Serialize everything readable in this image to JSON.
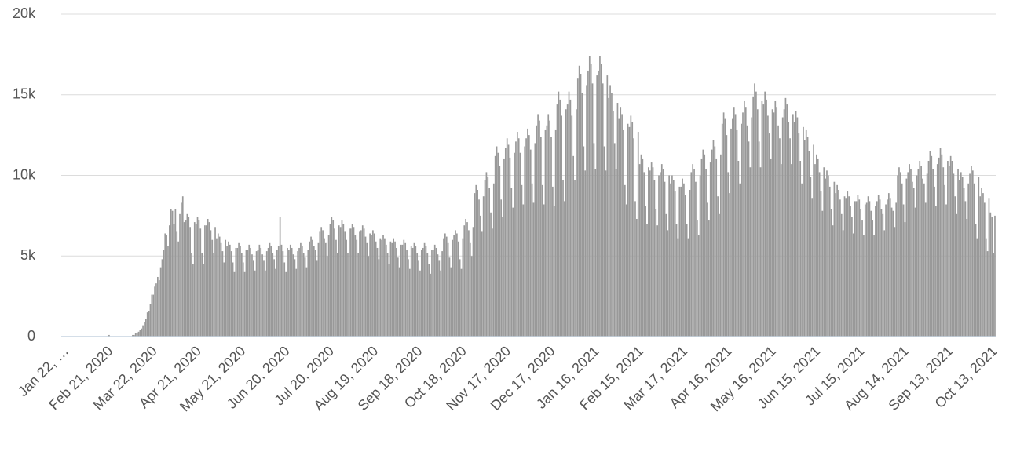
{
  "chart_data": {
    "type": "bar",
    "categories": [
      "Jan 22, …",
      null,
      null,
      null,
      null,
      null,
      null,
      null,
      null,
      null,
      null,
      null,
      null,
      null,
      null,
      null,
      null,
      null,
      null,
      null,
      null,
      null,
      null,
      null,
      null,
      null,
      null,
      null,
      null,
      null,
      "Feb 21, 2020",
      null,
      null,
      null,
      null,
      null,
      null,
      null,
      null,
      null,
      null,
      null,
      null,
      null,
      null,
      null,
      null,
      null,
      null,
      null,
      null,
      null,
      null,
      null,
      null,
      null,
      null,
      null,
      null,
      null,
      "Mar 22, 2020",
      null,
      null,
      null,
      null,
      null,
      null,
      null,
      null,
      null,
      null,
      null,
      null,
      null,
      null,
      null,
      null,
      null,
      null,
      null,
      null,
      null,
      null,
      null,
      null,
      null,
      null,
      null,
      null,
      null,
      "Apr 21, 2020",
      null,
      null,
      null,
      null,
      null,
      null,
      null,
      null,
      null,
      null,
      null,
      null,
      null,
      null,
      null,
      null,
      null,
      null,
      null,
      null,
      null,
      null,
      null,
      null,
      null,
      null,
      null,
      null,
      null,
      "May 21, 2020",
      null,
      null,
      null,
      null,
      null,
      null,
      null,
      null,
      null,
      null,
      null,
      null,
      null,
      null,
      null,
      null,
      null,
      null,
      null,
      null,
      null,
      null,
      null,
      null,
      null,
      null,
      null,
      null,
      null,
      "Jun 20, 2020",
      null,
      null,
      null,
      null,
      null,
      null,
      null,
      null,
      null,
      null,
      null,
      null,
      null,
      null,
      null,
      null,
      null,
      null,
      null,
      null,
      null,
      null,
      null,
      null,
      null,
      null,
      null,
      null,
      null,
      "Jul 20, 2020",
      null,
      null,
      null,
      null,
      null,
      null,
      null,
      null,
      null,
      null,
      null,
      null,
      null,
      null,
      null,
      null,
      null,
      null,
      null,
      null,
      null,
      null,
      null,
      null,
      null,
      null,
      null,
      null,
      null,
      "Aug 19, 2020",
      null,
      null,
      null,
      null,
      null,
      null,
      null,
      null,
      null,
      null,
      null,
      null,
      null,
      null,
      null,
      null,
      null,
      null,
      null,
      null,
      null,
      null,
      null,
      null,
      null,
      null,
      null,
      null,
      null,
      "Sep 18, 2020",
      null,
      null,
      null,
      null,
      null,
      null,
      null,
      null,
      null,
      null,
      null,
      null,
      null,
      null,
      null,
      null,
      null,
      null,
      null,
      null,
      null,
      null,
      null,
      null,
      null,
      null,
      null,
      null,
      null,
      "Oct 18, 2020",
      null,
      null,
      null,
      null,
      null,
      null,
      null,
      null,
      null,
      null,
      null,
      null,
      null,
      null,
      null,
      null,
      null,
      null,
      null,
      null,
      null,
      null,
      null,
      null,
      null,
      null,
      null,
      null,
      null,
      "Nov 17, 2020",
      null,
      null,
      null,
      null,
      null,
      null,
      null,
      null,
      null,
      null,
      null,
      null,
      null,
      null,
      null,
      null,
      null,
      null,
      null,
      null,
      null,
      null,
      null,
      null,
      null,
      null,
      null,
      null,
      null,
      "Dec 17, 2020",
      null,
      null,
      null,
      null,
      null,
      null,
      null,
      null,
      null,
      null,
      null,
      null,
      null,
      null,
      null,
      null,
      null,
      null,
      null,
      null,
      null,
      null,
      null,
      null,
      null,
      null,
      null,
      null,
      null,
      "Jan 16, 2021",
      null,
      null,
      null,
      null,
      null,
      null,
      null,
      null,
      null,
      null,
      null,
      null,
      null,
      null,
      null,
      null,
      null,
      null,
      null,
      null,
      null,
      null,
      null,
      null,
      null,
      null,
      null,
      null,
      null,
      "Feb 15, 2021",
      null,
      null,
      null,
      null,
      null,
      null,
      null,
      null,
      null,
      null,
      null,
      null,
      null,
      null,
      null,
      null,
      null,
      null,
      null,
      null,
      null,
      null,
      null,
      null,
      null,
      null,
      null,
      null,
      null,
      "Mar 17, 2021",
      null,
      null,
      null,
      null,
      null,
      null,
      null,
      null,
      null,
      null,
      null,
      null,
      null,
      null,
      null,
      null,
      null,
      null,
      null,
      null,
      null,
      null,
      null,
      null,
      null,
      null,
      null,
      null,
      null,
      "Apr 16, 2021",
      null,
      null,
      null,
      null,
      null,
      null,
      null,
      null,
      null,
      null,
      null,
      null,
      null,
      null,
      null,
      null,
      null,
      null,
      null,
      null,
      null,
      null,
      null,
      null,
      null,
      null,
      null,
      null,
      null,
      "May 16, 2021",
      null,
      null,
      null,
      null,
      null,
      null,
      null,
      null,
      null,
      null,
      null,
      null,
      null,
      null,
      null,
      null,
      null,
      null,
      null,
      null,
      null,
      null,
      null,
      null,
      null,
      null,
      null,
      null,
      null,
      "Jun 15, 2021",
      null,
      null,
      null,
      null,
      null,
      null,
      null,
      null,
      null,
      null,
      null,
      null,
      null,
      null,
      null,
      null,
      null,
      null,
      null,
      null,
      null,
      null,
      null,
      null,
      null,
      null,
      null,
      null,
      null,
      "Jul 15, 2021",
      null,
      null,
      null,
      null,
      null,
      null,
      null,
      null,
      null,
      null,
      null,
      null,
      null,
      null,
      null,
      null,
      null,
      null,
      null,
      null,
      null,
      null,
      null,
      null,
      null,
      null,
      null,
      null,
      null,
      "Aug 14, 2021",
      null,
      null,
      null,
      null,
      null,
      null,
      null,
      null,
      null,
      null,
      null,
      null,
      null,
      null,
      null,
      null,
      null,
      null,
      null,
      null,
      null,
      null,
      null,
      null,
      null,
      null,
      null,
      null,
      null,
      "Sep 13, 2021",
      null,
      null,
      null,
      null,
      null,
      null,
      null,
      null,
      null,
      null,
      null,
      null,
      null,
      null,
      null,
      null,
      null,
      null,
      null,
      null,
      null,
      null,
      null,
      null,
      null,
      null,
      null,
      null,
      null,
      "Oct 13, 2021",
      null,
      null,
      null
    ],
    "values": [
      0,
      0,
      0,
      0,
      0,
      0,
      0,
      0,
      0,
      0,
      0,
      0,
      0,
      0,
      0,
      0,
      0,
      0,
      0,
      0,
      0,
      0,
      0,
      0,
      0,
      0,
      0,
      0,
      0,
      0,
      0,
      0,
      100,
      0,
      0,
      0,
      0,
      0,
      0,
      0,
      0,
      0,
      0,
      0,
      0,
      0,
      0,
      0,
      100,
      100,
      200,
      200,
      300,
      400,
      500,
      700,
      900,
      1100,
      1500,
      1600,
      2000,
      2600,
      2600,
      3100,
      3300,
      3700,
      3500,
      4300,
      4800,
      5400,
      6400,
      6300,
      5600,
      6900,
      7900,
      7800,
      7000,
      7900,
      6500,
      5900,
      7600,
      8300,
      8700,
      7100,
      7200,
      7600,
      7400,
      6800,
      5200,
      4500,
      7100,
      7000,
      7400,
      7200,
      6700,
      5200,
      4500,
      6900,
      6900,
      7300,
      7100,
      6600,
      6000,
      5200,
      6800,
      6100,
      6400,
      6200,
      5800,
      5300,
      4600,
      6000,
      5600,
      5900,
      5700,
      5300,
      4600,
      4000,
      5500,
      5500,
      5800,
      5600,
      5200,
      4600,
      4000,
      5400,
      5400,
      5700,
      5500,
      5100,
      4700,
      4100,
      5300,
      5400,
      5700,
      5500,
      5100,
      4700,
      4100,
      5300,
      5500,
      5800,
      5600,
      5200,
      4800,
      4200,
      5400,
      5600,
      7400,
      5700,
      5300,
      4600,
      4000,
      5500,
      5400,
      5700,
      5500,
      5100,
      4800,
      4200,
      5300,
      5500,
      5800,
      5600,
      5200,
      4900,
      4300,
      5400,
      5900,
      6200,
      6000,
      5600,
      5400,
      4700,
      5800,
      6500,
      6800,
      6600,
      6100,
      5800,
      5000,
      6300,
      7000,
      7400,
      7200,
      6700,
      6000,
      5200,
      6900,
      6800,
      7200,
      7000,
      6500,
      6000,
      5200,
      6700,
      6700,
      7000,
      6800,
      6300,
      6000,
      5200,
      6500,
      6600,
      6900,
      6700,
      6200,
      5800,
      5000,
      6400,
      6300,
      6600,
      6400,
      5900,
      5500,
      4800,
      6100,
      6000,
      6300,
      6100,
      5700,
      5200,
      4500,
      5900,
      5800,
      6100,
      5900,
      5500,
      4900,
      4300,
      5700,
      5700,
      6000,
      5800,
      5400,
      4800,
      4200,
      5600,
      5500,
      5800,
      5600,
      5200,
      4700,
      4100,
      5400,
      5500,
      5800,
      5600,
      5200,
      4500,
      3900,
      5400,
      5400,
      5700,
      5500,
      5100,
      4700,
      4100,
      5300,
      6100,
      6400,
      6200,
      5800,
      4900,
      4300,
      6000,
      6300,
      6600,
      6400,
      5900,
      4800,
      4200,
      6100,
      6900,
      7300,
      7100,
      6600,
      5800,
      5000,
      6800,
      8900,
      9400,
      9100,
      8500,
      7500,
      6500,
      8700,
      9700,
      10200,
      9900,
      9200,
      7700,
      6700,
      9500,
      11200,
      11800,
      11400,
      10600,
      8500,
      7400,
      11000,
      11700,
      12300,
      11900,
      11100,
      9200,
      8000,
      11400,
      12100,
      12700,
      12300,
      11400,
      9400,
      8200,
      11800,
      12300,
      12900,
      12500,
      11600,
      9500,
      8300,
      12000,
      13100,
      13800,
      13400,
      12400,
      9400,
      8200,
      12800,
      13100,
      13800,
      13400,
      12400,
      9300,
      8100,
      12800,
      14400,
      15200,
      14700,
      13700,
      9700,
      8400,
      14100,
      14400,
      15200,
      14700,
      13700,
      11200,
      9700,
      14100,
      16000,
      16800,
      16300,
      15100,
      11800,
      10300,
      15600,
      16500,
      17400,
      16900,
      15700,
      12000,
      10400,
      16200,
      16500,
      17400,
      16900,
      15700,
      11800,
      10300,
      16200,
      14800,
      15600,
      15100,
      14000,
      12000,
      10400,
      14500,
      13500,
      14200,
      13800,
      12800,
      9400,
      8200,
      13200,
      13000,
      13700,
      13300,
      12300,
      8400,
      7300,
      12700,
      10700,
      11300,
      11000,
      10200,
      8100,
      7000,
      10500,
      10300,
      10800,
      10500,
      9700,
      7900,
      6900,
      10000,
      10200,
      10700,
      10400,
      9600,
      7600,
      6600,
      10000,
      9500,
      10000,
      9700,
      9000,
      7000,
      6100,
      9300,
      9300,
      9800,
      9500,
      8800,
      7000,
      6100,
      9100,
      10200,
      10700,
      10400,
      9600,
      7200,
      6300,
      10000,
      11000,
      11600,
      11300,
      10400,
      8300,
      7200,
      10800,
      11600,
      12200,
      11800,
      11000,
      8700,
      7600,
      11300,
      13200,
      13900,
      13500,
      12500,
      10200,
      8900,
      12900,
      13500,
      14200,
      13800,
      12800,
      10900,
      9500,
      13200,
      13900,
      14600,
      14200,
      13100,
      12100,
      10500,
      13600,
      14900,
      15700,
      15200,
      14100,
      12100,
      10500,
      14600,
      14400,
      15200,
      14700,
      13700,
      12600,
      11000,
      14100,
      13900,
      14600,
      14200,
      13100,
      12300,
      10700,
      13600,
      14100,
      14800,
      14400,
      13300,
      12300,
      10700,
      13800,
      13300,
      14000,
      13600,
      12600,
      10900,
      9500,
      13000,
      12200,
      12800,
      12400,
      11500,
      9900,
      8600,
      11900,
      10700,
      11300,
      11000,
      10200,
      9000,
      7800,
      10500,
      9800,
      10300,
      10000,
      9300,
      7900,
      6900,
      9600,
      8900,
      9400,
      9100,
      8500,
      7600,
      6600,
      8700,
      8600,
      9000,
      8700,
      8100,
      7400,
      6400,
      8400,
      8400,
      8800,
      8500,
      7900,
      7200,
      6300,
      8200,
      8300,
      8700,
      8400,
      7800,
      7200,
      6300,
      8100,
      8400,
      8800,
      8500,
      7900,
      7600,
      6600,
      8200,
      8500,
      8900,
      8600,
      8000,
      7800,
      6800,
      8300,
      10000,
      10500,
      10200,
      9500,
      8200,
      7100,
      9800,
      10200,
      10700,
      10400,
      9600,
      9200,
      8000,
      10000,
      10400,
      10900,
      10600,
      9800,
      9500,
      8300,
      10100,
      10900,
      11500,
      11200,
      10400,
      9300,
      8100,
      10700,
      11100,
      11700,
      11300,
      10500,
      9400,
      8200,
      10900,
      10600,
      11200,
      10900,
      10100,
      8700,
      7600,
      10400,
      9700,
      10200,
      9900,
      9200,
      8400,
      7300,
      9500,
      10100,
      10600,
      10300,
      9500,
      7000,
      6100,
      9900,
      8700,
      9200,
      8900,
      8300,
      6100,
      5300,
      8600,
      7700,
      7400,
      5200,
      7500
    ],
    "color": "#999999",
    "ylim": [
      0,
      20000
    ],
    "yticks": [
      0,
      {
        "value": 5000,
        "label": "5k"
      },
      {
        "value": 10000,
        "label": "10k"
      },
      {
        "value": 15000,
        "label": "15k"
      },
      {
        "value": 20000,
        "label": "20k"
      }
    ],
    "grid": true
  }
}
